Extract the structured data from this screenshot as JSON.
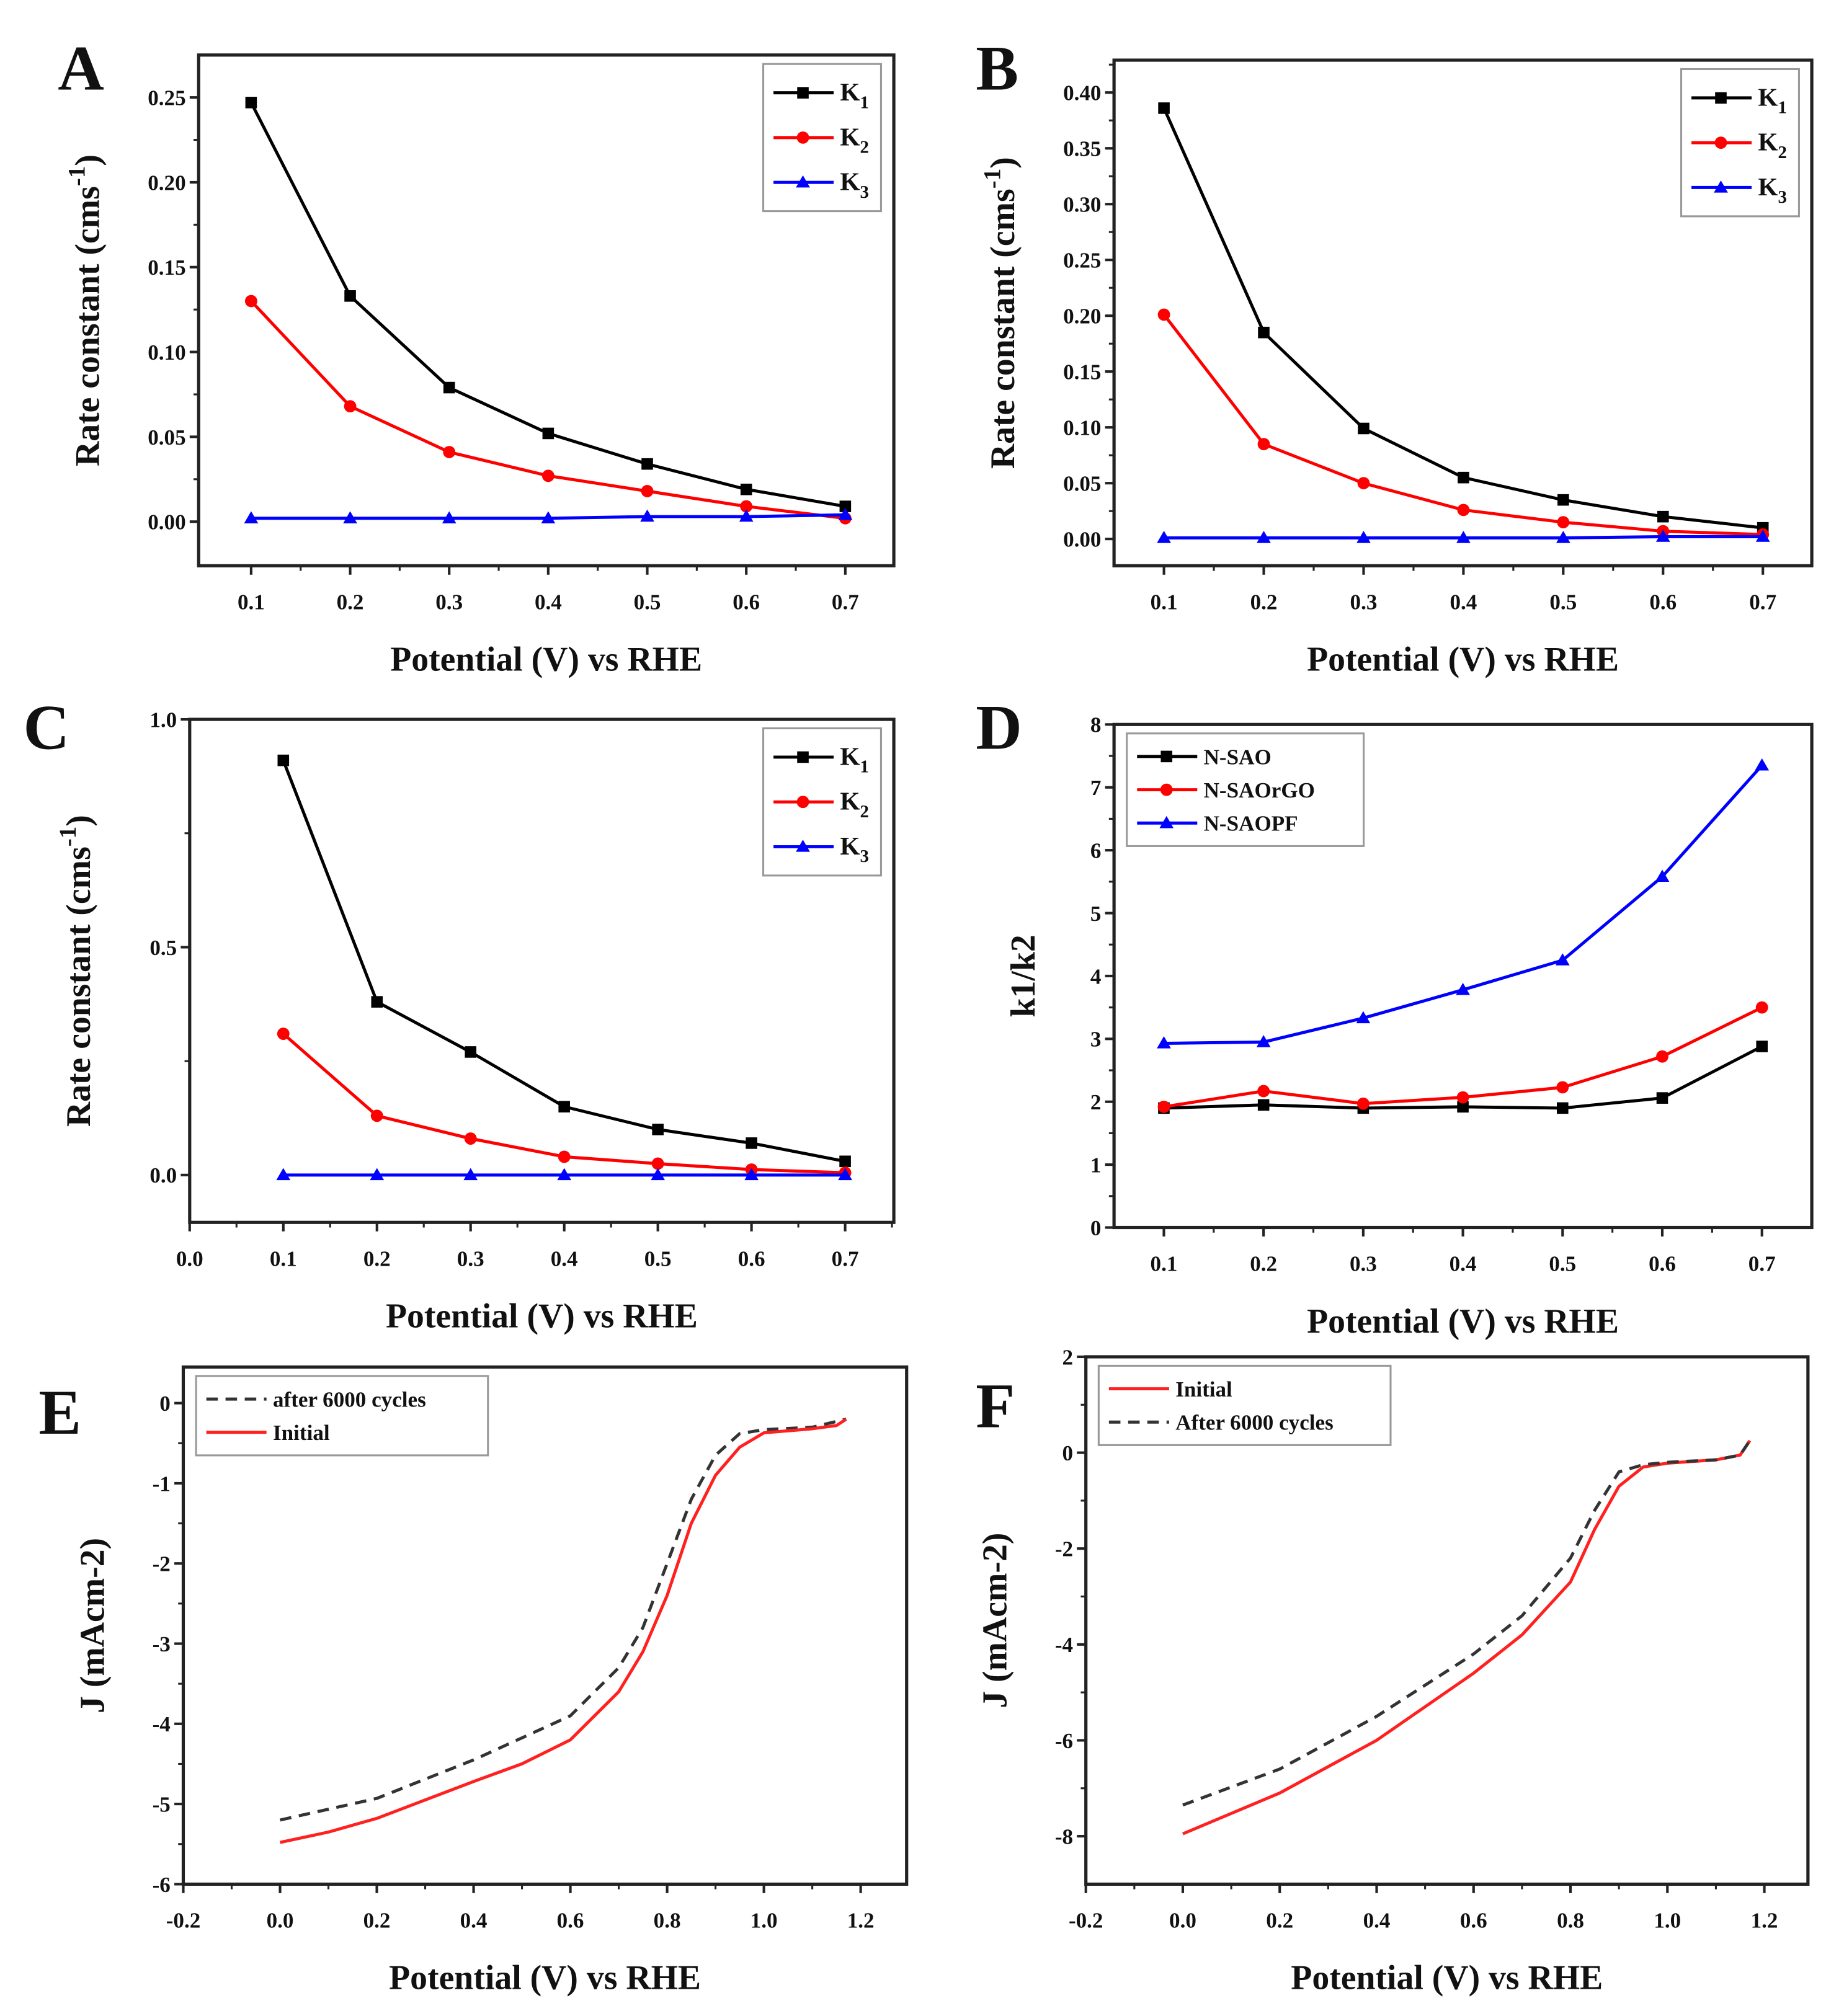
{
  "chart_data": [
    {
      "panel": "A",
      "type": "line",
      "xlabel": "Potential (V) vs RHE",
      "ylabel": "Rate constant (cms-1)",
      "xlim": [
        0.047,
        0.749
      ],
      "ylim": [
        -0.026,
        0.275
      ],
      "xticks": [
        "0.1",
        "0.2",
        "0.3",
        "0.4",
        "0.5",
        "0.6",
        "0.7"
      ],
      "yticks": [
        "0.00",
        "0.05",
        "0.10",
        "0.15",
        "0.20",
        "0.25"
      ],
      "legend_position": "top-right",
      "grid": false,
      "x": [
        0.1,
        0.2,
        0.3,
        0.4,
        0.5,
        0.6,
        0.7
      ],
      "series": [
        {
          "name": "K1",
          "color": "#000000",
          "marker": "square",
          "values": [
            0.247,
            0.133,
            0.079,
            0.052,
            0.034,
            0.019,
            0.009
          ]
        },
        {
          "name": "K2",
          "color": "#ff0000",
          "marker": "circle",
          "values": [
            0.13,
            0.068,
            0.041,
            0.027,
            0.018,
            0.009,
            0.002
          ]
        },
        {
          "name": "K3",
          "color": "#0000ff",
          "marker": "triangle",
          "values": [
            0.002,
            0.002,
            0.002,
            0.002,
            0.003,
            0.003,
            0.004
          ]
        }
      ]
    },
    {
      "panel": "B",
      "type": "line",
      "xlabel": "Potential (V) vs RHE",
      "ylabel": "Rate constant (cms-1)",
      "xlim": [
        0.05,
        0.749
      ],
      "ylim": [
        -0.024,
        0.429
      ],
      "xticks": [
        "0.1",
        "0.2",
        "0.3",
        "0.4",
        "0.5",
        "0.6",
        "0.7"
      ],
      "yticks": [
        "0.00",
        "0.05",
        "0.10",
        "0.15",
        "0.20",
        "0.25",
        "0.30",
        "0.35",
        "0.40"
      ],
      "legend_position": "top-right",
      "grid": false,
      "x": [
        0.1,
        0.2,
        0.3,
        0.4,
        0.5,
        0.6,
        0.7
      ],
      "series": [
        {
          "name": "K1",
          "color": "#000000",
          "marker": "square",
          "values": [
            0.386,
            0.185,
            0.099,
            0.055,
            0.035,
            0.02,
            0.01
          ]
        },
        {
          "name": "K2",
          "color": "#ff0000",
          "marker": "circle",
          "values": [
            0.201,
            0.085,
            0.05,
            0.026,
            0.015,
            0.007,
            0.004
          ]
        },
        {
          "name": "K3",
          "color": "#0000ff",
          "marker": "triangle",
          "values": [
            0.001,
            0.001,
            0.001,
            0.001,
            0.001,
            0.002,
            0.002
          ]
        }
      ]
    },
    {
      "panel": "C",
      "type": "line",
      "xlabel": "Potential (V) vs RHE",
      "ylabel": "Rate constant (cms-1)",
      "xlim": [
        0.0,
        0.752
      ],
      "ylim": [
        -0.104,
        1.0
      ],
      "xticks": [
        "0.0",
        "0.1",
        "0.2",
        "0.3",
        "0.4",
        "0.5",
        "0.6",
        "0.7"
      ],
      "yticks": [
        "0.0",
        "0.5",
        "1.0"
      ],
      "legend_position": "top-right",
      "grid": false,
      "x": [
        0.1,
        0.2,
        0.3,
        0.4,
        0.5,
        0.6,
        0.7
      ],
      "series": [
        {
          "name": "K1",
          "color": "#000000",
          "marker": "square",
          "values": [
            0.91,
            0.38,
            0.27,
            0.15,
            0.1,
            0.07,
            0.03
          ]
        },
        {
          "name": "K2",
          "color": "#ff0000",
          "marker": "circle",
          "values": [
            0.31,
            0.13,
            0.08,
            0.04,
            0.025,
            0.012,
            0.005
          ]
        },
        {
          "name": "K3",
          "color": "#0000ff",
          "marker": "triangle",
          "values": [
            0,
            0,
            0,
            0,
            0,
            0,
            0
          ]
        }
      ]
    },
    {
      "panel": "D",
      "type": "line",
      "xlabel": "Potential (V) vs RHE",
      "ylabel": "k1/k2",
      "xlim": [
        0.05,
        0.75
      ],
      "ylim": [
        0,
        8
      ],
      "xticks": [
        "0.1",
        "0.2",
        "0.3",
        "0.4",
        "0.5",
        "0.6",
        "0.7"
      ],
      "yticks": [
        "0",
        "1",
        "2",
        "3",
        "4",
        "5",
        "6",
        "7",
        "8"
      ],
      "legend_position": "top-left",
      "grid": false,
      "x": [
        0.1,
        0.2,
        0.3,
        0.4,
        0.5,
        0.6,
        0.7
      ],
      "series": [
        {
          "name": "N-SAO",
          "color": "#000000",
          "marker": "square",
          "values": [
            1.9,
            1.95,
            1.9,
            1.92,
            1.9,
            2.06,
            2.88
          ]
        },
        {
          "name": "N-SAOrGO",
          "color": "#ff0000",
          "marker": "circle",
          "values": [
            1.92,
            2.17,
            1.97,
            2.07,
            2.23,
            2.72,
            3.5
          ]
        },
        {
          "name": "N-SAOPF",
          "color": "#0000ff",
          "marker": "triangle",
          "values": [
            2.93,
            2.95,
            3.33,
            3.78,
            4.25,
            5.58,
            7.35
          ]
        }
      ]
    },
    {
      "panel": "E",
      "type": "line",
      "xlabel": "Potential (V) vs RHE",
      "ylabel": "J (mAcm-2)",
      "xlim": [
        -0.2,
        1.295
      ],
      "ylim": [
        -6,
        0.45
      ],
      "xticks": [
        "-0.2",
        "0.0",
        "0.2",
        "0.4",
        "0.6",
        "0.8",
        "1.0",
        "1.2"
      ],
      "yticks": [
        "-6",
        "-5",
        "-4",
        "-3",
        "-2",
        "-1",
        "0"
      ],
      "legend_position": "top-left",
      "grid": false,
      "series": [
        {
          "name": "after 6000 cycles",
          "color": "#333333",
          "dash": true,
          "points": [
            [
              0,
              -5.2
            ],
            [
              0.2,
              -4.93
            ],
            [
              0.4,
              -4.45
            ],
            [
              0.6,
              -3.9
            ],
            [
              0.7,
              -3.3
            ],
            [
              0.75,
              -2.8
            ],
            [
              0.8,
              -2.0
            ],
            [
              0.85,
              -1.2
            ],
            [
              0.9,
              -0.65
            ],
            [
              0.95,
              -0.38
            ],
            [
              1.0,
              -0.33
            ],
            [
              1.1,
              -0.3
            ],
            [
              1.17,
              -0.2
            ]
          ]
        },
        {
          "name": "Initial",
          "color": "#ff2020",
          "dash": false,
          "points": [
            [
              0,
              -5.48
            ],
            [
              0.1,
              -5.35
            ],
            [
              0.2,
              -5.18
            ],
            [
              0.3,
              -4.95
            ],
            [
              0.4,
              -4.72
            ],
            [
              0.5,
              -4.5
            ],
            [
              0.6,
              -4.2
            ],
            [
              0.7,
              -3.6
            ],
            [
              0.75,
              -3.1
            ],
            [
              0.8,
              -2.4
            ],
            [
              0.85,
              -1.5
            ],
            [
              0.9,
              -0.9
            ],
            [
              0.95,
              -0.55
            ],
            [
              1.0,
              -0.37
            ],
            [
              1.1,
              -0.32
            ],
            [
              1.15,
              -0.28
            ],
            [
              1.17,
              -0.2
            ]
          ]
        }
      ]
    },
    {
      "panel": "F",
      "type": "line",
      "xlabel": "Potential (V) vs RHE",
      "ylabel": "J (mAcm-2)",
      "xlim": [
        -0.2,
        1.29
      ],
      "ylim": [
        -9,
        2
      ],
      "xticks": [
        "-0.2",
        "0.0",
        "0.2",
        "0.4",
        "0.6",
        "0.8",
        "1.0",
        "1.2"
      ],
      "yticks": [
        "-8",
        "-6",
        "-4",
        "-2",
        "0",
        "2"
      ],
      "legend_position": "top-left",
      "grid": false,
      "series": [
        {
          "name": "Initial",
          "color": "#ff2020",
          "dash": false,
          "points": [
            [
              0,
              -7.95
            ],
            [
              0.2,
              -7.1
            ],
            [
              0.4,
              -6.0
            ],
            [
              0.6,
              -4.6
            ],
            [
              0.7,
              -3.8
            ],
            [
              0.8,
              -2.7
            ],
            [
              0.85,
              -1.6
            ],
            [
              0.9,
              -0.7
            ],
            [
              0.95,
              -0.3
            ],
            [
              1.0,
              -0.22
            ],
            [
              1.1,
              -0.15
            ],
            [
              1.15,
              -0.05
            ],
            [
              1.17,
              0.25
            ]
          ]
        },
        {
          "name": "After 6000 cycles",
          "color": "#333333",
          "dash": true,
          "points": [
            [
              0,
              -7.35
            ],
            [
              0.2,
              -6.6
            ],
            [
              0.4,
              -5.5
            ],
            [
              0.6,
              -4.2
            ],
            [
              0.7,
              -3.4
            ],
            [
              0.8,
              -2.2
            ],
            [
              0.85,
              -1.2
            ],
            [
              0.9,
              -0.4
            ],
            [
              0.95,
              -0.25
            ],
            [
              1.0,
              -0.2
            ],
            [
              1.1,
              -0.15
            ],
            [
              1.15,
              -0.05
            ],
            [
              1.17,
              0.25
            ]
          ]
        }
      ]
    }
  ]
}
